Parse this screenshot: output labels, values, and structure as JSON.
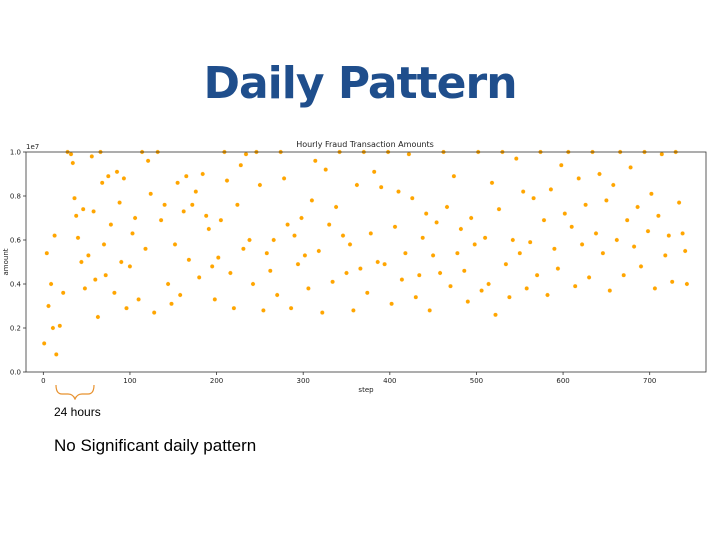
{
  "slide": {
    "title": "Daily Pattern",
    "bracket_label": "24 hours",
    "caption": "No Significant daily pattern"
  },
  "colors": {
    "title": "#1f4e8c",
    "points": "#ffa500",
    "bracket": "#e8922f"
  },
  "chart_data": {
    "type": "scatter",
    "title": "Hourly Fraud Transaction Amounts",
    "xlabel": "step",
    "ylabel": "amount",
    "y_scale_label": "1e7",
    "xlim": [
      -20,
      765
    ],
    "ylim": [
      0,
      10000000
    ],
    "x_ticks": [
      0,
      100,
      200,
      300,
      400,
      500,
      600,
      700
    ],
    "y_ticks": [
      {
        "value": 0,
        "label": "0.0"
      },
      {
        "value": 2000000,
        "label": "0.2"
      },
      {
        "value": 4000000,
        "label": "0.4"
      },
      {
        "value": 6000000,
        "label": "0.6"
      },
      {
        "value": 8000000,
        "label": "0.8"
      },
      {
        "value": 10000000,
        "label": "1.0"
      }
    ],
    "grid": false,
    "legend": "none",
    "points": [
      [
        1,
        1300000
      ],
      [
        4,
        5400000
      ],
      [
        6,
        3000000
      ],
      [
        9,
        4000000
      ],
      [
        11,
        2000000
      ],
      [
        13,
        6200000
      ],
      [
        15,
        800000
      ],
      [
        19,
        2100000
      ],
      [
        23,
        3600000
      ],
      [
        28,
        10000000
      ],
      [
        32,
        9900000
      ],
      [
        34,
        9500000
      ],
      [
        36,
        7900000
      ],
      [
        38,
        7100000
      ],
      [
        40,
        6100000
      ],
      [
        44,
        5000000
      ],
      [
        46,
        7400000
      ],
      [
        48,
        3800000
      ],
      [
        52,
        5300000
      ],
      [
        56,
        9800000
      ],
      [
        58,
        7300000
      ],
      [
        60,
        4200000
      ],
      [
        63,
        2500000
      ],
      [
        66,
        10000000
      ],
      [
        68,
        8600000
      ],
      [
        70,
        5800000
      ],
      [
        72,
        4400000
      ],
      [
        75,
        8900000
      ],
      [
        78,
        6700000
      ],
      [
        82,
        3600000
      ],
      [
        85,
        9100000
      ],
      [
        88,
        7700000
      ],
      [
        90,
        5000000
      ],
      [
        93,
        8800000
      ],
      [
        96,
        2900000
      ],
      [
        100,
        4800000
      ],
      [
        103,
        6300000
      ],
      [
        106,
        7000000
      ],
      [
        110,
        3300000
      ],
      [
        114,
        10000000
      ],
      [
        118,
        5600000
      ],
      [
        121,
        9600000
      ],
      [
        124,
        8100000
      ],
      [
        128,
        2700000
      ],
      [
        132,
        10000000
      ],
      [
        136,
        6900000
      ],
      [
        140,
        7600000
      ],
      [
        144,
        4000000
      ],
      [
        148,
        3100000
      ],
      [
        152,
        5800000
      ],
      [
        155,
        8600000
      ],
      [
        158,
        3500000
      ],
      [
        162,
        7300000
      ],
      [
        165,
        8900000
      ],
      [
        168,
        5100000
      ],
      [
        172,
        7600000
      ],
      [
        176,
        8200000
      ],
      [
        180,
        4300000
      ],
      [
        184,
        9000000
      ],
      [
        188,
        7100000
      ],
      [
        191,
        6500000
      ],
      [
        195,
        4800000
      ],
      [
        198,
        3300000
      ],
      [
        202,
        5200000
      ],
      [
        205,
        6900000
      ],
      [
        209,
        10000000
      ],
      [
        212,
        8700000
      ],
      [
        216,
        4500000
      ],
      [
        220,
        2900000
      ],
      [
        224,
        7600000
      ],
      [
        228,
        9400000
      ],
      [
        231,
        5600000
      ],
      [
        234,
        9900000
      ],
      [
        238,
        6000000
      ],
      [
        242,
        4000000
      ],
      [
        246,
        10000000
      ],
      [
        250,
        8500000
      ],
      [
        254,
        2800000
      ],
      [
        258,
        5400000
      ],
      [
        262,
        4600000
      ],
      [
        266,
        6000000
      ],
      [
        270,
        3500000
      ],
      [
        274,
        10000000
      ],
      [
        278,
        8800000
      ],
      [
        282,
        6700000
      ],
      [
        286,
        2900000
      ],
      [
        290,
        6200000
      ],
      [
        294,
        4900000
      ],
      [
        298,
        7000000
      ],
      [
        302,
        5300000
      ],
      [
        306,
        3800000
      ],
      [
        310,
        7800000
      ],
      [
        314,
        9600000
      ],
      [
        318,
        5500000
      ],
      [
        322,
        2700000
      ],
      [
        326,
        9200000
      ],
      [
        330,
        6700000
      ],
      [
        334,
        4100000
      ],
      [
        338,
        7500000
      ],
      [
        342,
        10000000
      ],
      [
        346,
        6200000
      ],
      [
        350,
        4500000
      ],
      [
        354,
        5800000
      ],
      [
        358,
        2800000
      ],
      [
        362,
        8500000
      ],
      [
        366,
        4700000
      ],
      [
        370,
        10000000
      ],
      [
        374,
        3600000
      ],
      [
        378,
        6300000
      ],
      [
        382,
        9100000
      ],
      [
        386,
        5000000
      ],
      [
        390,
        8400000
      ],
      [
        394,
        4900000
      ],
      [
        398,
        10000000
      ],
      [
        402,
        3100000
      ],
      [
        406,
        6600000
      ],
      [
        410,
        8200000
      ],
      [
        414,
        4200000
      ],
      [
        418,
        5400000
      ],
      [
        422,
        9900000
      ],
      [
        426,
        7900000
      ],
      [
        430,
        3400000
      ],
      [
        434,
        4400000
      ],
      [
        438,
        6100000
      ],
      [
        442,
        7200000
      ],
      [
        446,
        2800000
      ],
      [
        450,
        5300000
      ],
      [
        454,
        6800000
      ],
      [
        458,
        4500000
      ],
      [
        462,
        10000000
      ],
      [
        466,
        7500000
      ],
      [
        470,
        3900000
      ],
      [
        474,
        8900000
      ],
      [
        478,
        5400000
      ],
      [
        482,
        6500000
      ],
      [
        486,
        4600000
      ],
      [
        490,
        3200000
      ],
      [
        494,
        7000000
      ],
      [
        498,
        5800000
      ],
      [
        502,
        10000000
      ],
      [
        506,
        3700000
      ],
      [
        510,
        6100000
      ],
      [
        514,
        4000000
      ],
      [
        518,
        8600000
      ],
      [
        522,
        2600000
      ],
      [
        526,
        7400000
      ],
      [
        530,
        10000000
      ],
      [
        534,
        4900000
      ],
      [
        538,
        3400000
      ],
      [
        542,
        6000000
      ],
      [
        546,
        9700000
      ],
      [
        550,
        5400000
      ],
      [
        554,
        8200000
      ],
      [
        558,
        3800000
      ],
      [
        562,
        5900000
      ],
      [
        566,
        7900000
      ],
      [
        570,
        4400000
      ],
      [
        574,
        10000000
      ],
      [
        578,
        6900000
      ],
      [
        582,
        3500000
      ],
      [
        586,
        8300000
      ],
      [
        590,
        5600000
      ],
      [
        594,
        4700000
      ],
      [
        598,
        9400000
      ],
      [
        602,
        7200000
      ],
      [
        606,
        10000000
      ],
      [
        610,
        6600000
      ],
      [
        614,
        3900000
      ],
      [
        618,
        8800000
      ],
      [
        622,
        5800000
      ],
      [
        626,
        7600000
      ],
      [
        630,
        4300000
      ],
      [
        634,
        10000000
      ],
      [
        638,
        6300000
      ],
      [
        642,
        9000000
      ],
      [
        646,
        5400000
      ],
      [
        650,
        7800000
      ],
      [
        654,
        3700000
      ],
      [
        658,
        8500000
      ],
      [
        662,
        6000000
      ],
      [
        666,
        10000000
      ],
      [
        670,
        4400000
      ],
      [
        674,
        6900000
      ],
      [
        678,
        9300000
      ],
      [
        682,
        5700000
      ],
      [
        686,
        7500000
      ],
      [
        690,
        4800000
      ],
      [
        694,
        10000000
      ],
      [
        698,
        6400000
      ],
      [
        702,
        8100000
      ],
      [
        706,
        3800000
      ],
      [
        710,
        7100000
      ],
      [
        714,
        9900000
      ],
      [
        718,
        5300000
      ],
      [
        722,
        6200000
      ],
      [
        726,
        4100000
      ],
      [
        730,
        10000000
      ],
      [
        734,
        7700000
      ],
      [
        738,
        6300000
      ],
      [
        741,
        5500000
      ],
      [
        743,
        4000000
      ]
    ]
  }
}
